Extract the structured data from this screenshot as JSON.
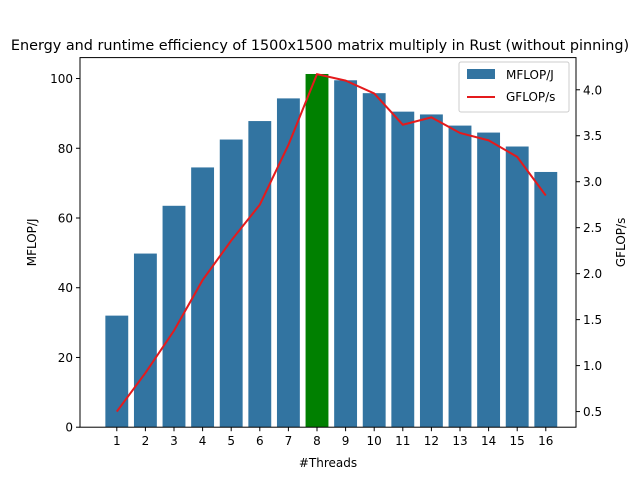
{
  "chart_data": {
    "type": "bar",
    "title": "Energy and runtime efficiency of 1500x1500 matrix multiply in Rust (without pinning)",
    "xlabel": "#Threads",
    "ylabel": "MFLOP/J",
    "ylabel_right": "GFLOP/s",
    "categories": [
      "1",
      "2",
      "3",
      "4",
      "5",
      "6",
      "7",
      "8",
      "9",
      "10",
      "11",
      "12",
      "13",
      "14",
      "15",
      "16"
    ],
    "ylim": [
      0,
      106
    ],
    "ylim_right": [
      0.33,
      4.35
    ],
    "yticks": [
      0,
      20,
      40,
      60,
      80,
      100
    ],
    "yticks_right": [
      0.5,
      1.0,
      1.5,
      2.0,
      2.5,
      3.0,
      3.5,
      4.0
    ],
    "grid": false,
    "legend_position": "top-right",
    "series": [
      {
        "name": "MFLOP/J",
        "type": "bar",
        "axis": "left",
        "color": "#3274a1",
        "highlight_index": 7,
        "highlight_color": "#008000",
        "values": [
          32,
          49.8,
          63.5,
          74.5,
          82.5,
          87.8,
          94.3,
          101.3,
          99.5,
          95.8,
          90.5,
          89.7,
          86.5,
          84.5,
          80.5,
          73.2
        ]
      },
      {
        "name": "GFLOP/s",
        "type": "line",
        "axis": "right",
        "color": "#e41a1c",
        "values": [
          0.5,
          0.92,
          1.38,
          1.93,
          2.36,
          2.75,
          3.4,
          4.17,
          4.1,
          3.96,
          3.62,
          3.7,
          3.53,
          3.45,
          3.27,
          2.85
        ]
      }
    ]
  }
}
